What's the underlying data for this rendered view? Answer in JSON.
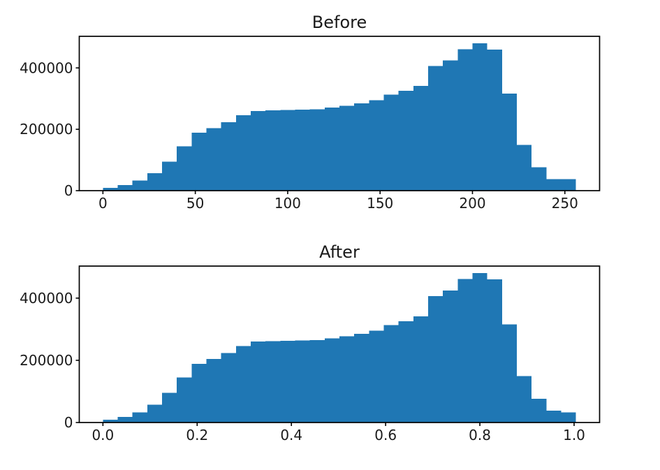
{
  "figure": {
    "background": "#ffffff",
    "bar_color": "#1f77b4",
    "axis_color": "#000000",
    "text_color": "#1a1a1a"
  },
  "chart_data": [
    {
      "type": "bar",
      "title": "Before",
      "xlabel": "",
      "ylabel": "",
      "grid": false,
      "legend": "none",
      "xlim": [
        -12.8,
        268.8
      ],
      "ylim": [
        0,
        503000
      ],
      "bin_start": 0,
      "bin_width": 8,
      "values": [
        9000,
        18000,
        33000,
        57000,
        95000,
        145000,
        189000,
        204000,
        223000,
        246000,
        260000,
        262000,
        263000,
        264000,
        265000,
        271000,
        277000,
        285000,
        295000,
        313000,
        326000,
        341000,
        406000,
        424000,
        461000,
        480000,
        460000,
        316000,
        149000,
        76000,
        38000,
        38000
      ],
      "x_ticks": [
        {
          "value": 0,
          "label": "0"
        },
        {
          "value": 50,
          "label": "50"
        },
        {
          "value": 100,
          "label": "100"
        },
        {
          "value": 150,
          "label": "150"
        },
        {
          "value": 200,
          "label": "200"
        },
        {
          "value": 250,
          "label": "250"
        }
      ],
      "y_ticks": [
        {
          "value": 0,
          "label": "0"
        },
        {
          "value": 200000,
          "label": "200000"
        },
        {
          "value": 400000,
          "label": "400000"
        }
      ]
    },
    {
      "type": "bar",
      "title": "After",
      "xlabel": "",
      "ylabel": "",
      "grid": false,
      "legend": "none",
      "xlim": [
        -0.0502,
        1.0541
      ],
      "ylim": [
        0,
        503000
      ],
      "bin_start": 0,
      "bin_width": 0.031373,
      "values": [
        9000,
        18000,
        33000,
        57000,
        95000,
        145000,
        189000,
        204000,
        223000,
        246000,
        260000,
        262000,
        263000,
        264000,
        265000,
        271000,
        277000,
        285000,
        295000,
        313000,
        326000,
        341000,
        406000,
        424000,
        461000,
        480000,
        460000,
        316000,
        149000,
        76000,
        38000,
        33000
      ],
      "x_ticks": [
        {
          "value": 0.0,
          "label": "0.0"
        },
        {
          "value": 0.2,
          "label": "0.2"
        },
        {
          "value": 0.4,
          "label": "0.4"
        },
        {
          "value": 0.6,
          "label": "0.6"
        },
        {
          "value": 0.8,
          "label": "0.8"
        },
        {
          "value": 1.0,
          "label": "1.0"
        }
      ],
      "y_ticks": [
        {
          "value": 0,
          "label": "0"
        },
        {
          "value": 200000,
          "label": "200000"
        },
        {
          "value": 400000,
          "label": "400000"
        }
      ]
    }
  ]
}
